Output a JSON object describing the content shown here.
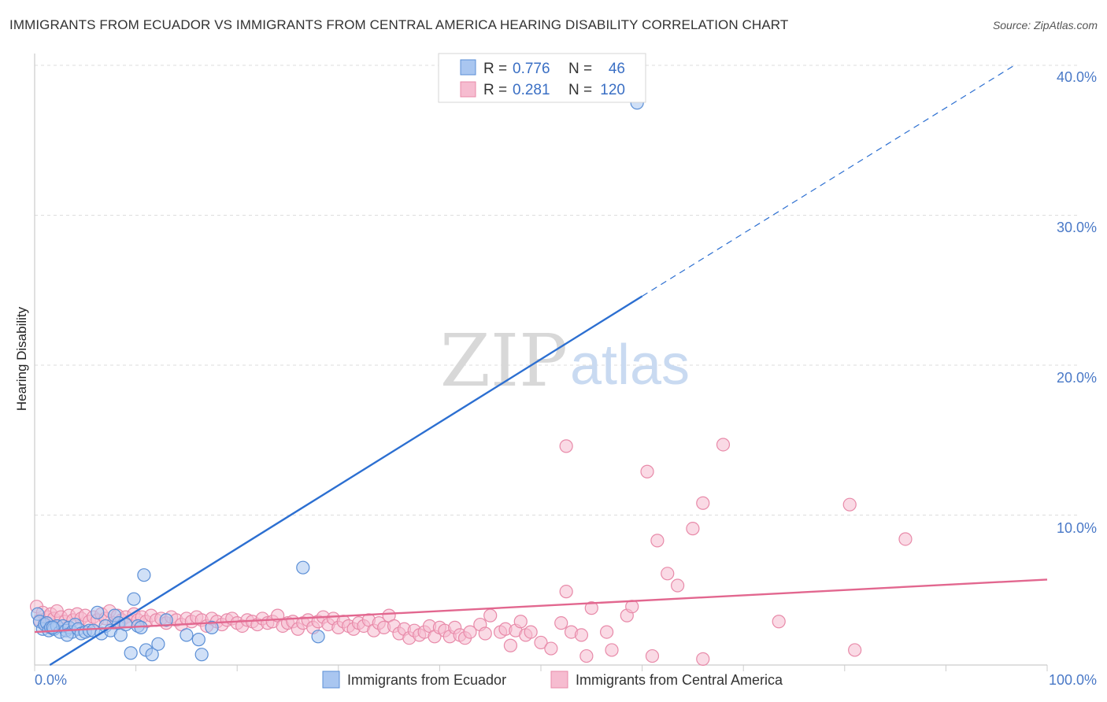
{
  "title": "IMMIGRANTS FROM ECUADOR VS IMMIGRANTS FROM CENTRAL AMERICA HEARING DISABILITY CORRELATION CHART",
  "source": "Source: ZipAtlas.com",
  "watermark": {
    "zip": "ZIP",
    "atlas": "atlas"
  },
  "legend_top": [
    {
      "r_label": "R =",
      "r_value": "0.776",
      "n_label": "N =",
      "n_value": "46"
    },
    {
      "r_label": "R =",
      "r_value": "0.281",
      "n_label": "N =",
      "n_value": "120"
    }
  ],
  "colors": {
    "ecuador_fill": "#a9c6f0",
    "ecuador_stroke": "#5b8fd6",
    "ecuador_line": "#2c6fd1",
    "central_fill": "#f6bcd0",
    "central_stroke": "#e88aa9",
    "central_line": "#e2678f",
    "tick": "#4a79c7",
    "grid": "#dddddd"
  },
  "chart_data": {
    "type": "scatter",
    "title": "IMMIGRANTS FROM ECUADOR VS IMMIGRANTS FROM CENTRAL AMERICA HEARING DISABILITY CORRELATION CHART",
    "xlabel": "",
    "ylabel": "Hearing Disability",
    "xlim": [
      0,
      100
    ],
    "ylim": [
      0,
      42
    ],
    "x_tick_labels": [
      "0.0%",
      "100.0%"
    ],
    "y_ticks": [
      10,
      20,
      30,
      40
    ],
    "y_tick_labels": [
      "10.0%",
      "20.0%",
      "30.0%",
      "40.0%"
    ],
    "series": [
      {
        "name": "Immigrants from Ecuador",
        "R": 0.776,
        "N": 46,
        "trend": {
          "x0": 1.5,
          "y0": 0.0,
          "x1": 60.0,
          "y1": 24.6,
          "dash_to_x": 97.0,
          "dash_to_y": 40.1
        },
        "points": [
          [
            0.3,
            3.4
          ],
          [
            0.5,
            2.9
          ],
          [
            0.8,
            2.4
          ],
          [
            1.0,
            2.7
          ],
          [
            1.2,
            2.8
          ],
          [
            1.4,
            2.3
          ],
          [
            1.6,
            2.5
          ],
          [
            1.9,
            2.4
          ],
          [
            2.2,
            2.6
          ],
          [
            2.5,
            2.2
          ],
          [
            2.8,
            2.6
          ],
          [
            3.1,
            2.3
          ],
          [
            3.4,
            2.5
          ],
          [
            3.7,
            2.2
          ],
          [
            4.0,
            2.7
          ],
          [
            4.3,
            2.4
          ],
          [
            4.6,
            2.1
          ],
          [
            5.0,
            2.2
          ],
          [
            5.4,
            2.3
          ],
          [
            5.8,
            2.3
          ],
          [
            6.2,
            3.5
          ],
          [
            6.6,
            2.1
          ],
          [
            7.0,
            2.6
          ],
          [
            7.5,
            2.3
          ],
          [
            7.9,
            3.3
          ],
          [
            8.3,
            2.8
          ],
          [
            8.5,
            2.0
          ],
          [
            9.0,
            2.7
          ],
          [
            9.5,
            0.8
          ],
          [
            9.8,
            4.4
          ],
          [
            10.2,
            2.6
          ],
          [
            10.5,
            2.5
          ],
          [
            10.8,
            6.0
          ],
          [
            11.0,
            1.0
          ],
          [
            11.6,
            0.7
          ],
          [
            12.2,
            1.4
          ],
          [
            13.0,
            3.0
          ],
          [
            15.0,
            2.0
          ],
          [
            16.2,
            1.7
          ],
          [
            16.5,
            0.7
          ],
          [
            17.5,
            2.5
          ],
          [
            26.5,
            6.5
          ],
          [
            28.0,
            1.9
          ],
          [
            59.5,
            37.5
          ],
          [
            1.8,
            2.5
          ],
          [
            3.2,
            2.0
          ]
        ]
      },
      {
        "name": "Immigrants from Central America",
        "R": 0.281,
        "N": 120,
        "trend": {
          "x0": 0.0,
          "y0": 2.2,
          "x1": 100.0,
          "y1": 5.7
        },
        "points": [
          [
            0.2,
            3.9
          ],
          [
            0.5,
            3.0
          ],
          [
            0.8,
            3.5
          ],
          [
            1.0,
            2.8
          ],
          [
            1.3,
            3.2
          ],
          [
            1.6,
            3.4
          ],
          [
            1.9,
            3.1
          ],
          [
            2.2,
            3.6
          ],
          [
            2.6,
            3.2
          ],
          [
            3.0,
            2.9
          ],
          [
            3.4,
            3.3
          ],
          [
            3.8,
            3.0
          ],
          [
            4.2,
            3.4
          ],
          [
            4.6,
            3.1
          ],
          [
            5.0,
            3.3
          ],
          [
            5.4,
            2.9
          ],
          [
            5.8,
            3.2
          ],
          [
            6.2,
            3.0
          ],
          [
            6.6,
            3.4
          ],
          [
            7.0,
            3.1
          ],
          [
            7.4,
            3.6
          ],
          [
            7.8,
            2.8
          ],
          [
            8.2,
            3.3
          ],
          [
            8.6,
            3.0
          ],
          [
            9.0,
            3.2
          ],
          [
            9.4,
            2.9
          ],
          [
            9.8,
            3.4
          ],
          [
            10.2,
            3.0
          ],
          [
            10.6,
            3.2
          ],
          [
            11.0,
            2.9
          ],
          [
            11.5,
            3.3
          ],
          [
            12.0,
            3.0
          ],
          [
            12.5,
            3.1
          ],
          [
            13.0,
            2.8
          ],
          [
            13.5,
            3.2
          ],
          [
            14.0,
            3.0
          ],
          [
            14.5,
            2.7
          ],
          [
            15.0,
            3.1
          ],
          [
            15.5,
            2.9
          ],
          [
            16.0,
            3.2
          ],
          [
            16.5,
            3.0
          ],
          [
            17.0,
            2.6
          ],
          [
            17.5,
            3.1
          ],
          [
            18.0,
            2.9
          ],
          [
            18.5,
            2.7
          ],
          [
            19.0,
            3.0
          ],
          [
            19.5,
            3.1
          ],
          [
            20.0,
            2.8
          ],
          [
            20.5,
            2.6
          ],
          [
            21.0,
            3.0
          ],
          [
            21.5,
            2.9
          ],
          [
            22.0,
            2.7
          ],
          [
            22.5,
            3.1
          ],
          [
            23.0,
            2.8
          ],
          [
            23.5,
            2.9
          ],
          [
            24.0,
            3.3
          ],
          [
            24.5,
            2.6
          ],
          [
            25.0,
            2.8
          ],
          [
            25.5,
            2.9
          ],
          [
            26.0,
            2.4
          ],
          [
            26.5,
            2.8
          ],
          [
            27.0,
            3.0
          ],
          [
            27.5,
            2.5
          ],
          [
            28.0,
            2.9
          ],
          [
            28.5,
            3.2
          ],
          [
            29.0,
            2.7
          ],
          [
            29.5,
            3.1
          ],
          [
            30.0,
            2.5
          ],
          [
            30.5,
            2.9
          ],
          [
            31.0,
            2.6
          ],
          [
            31.5,
            2.4
          ],
          [
            32.0,
            2.8
          ],
          [
            32.5,
            2.6
          ],
          [
            33.0,
            3.0
          ],
          [
            33.5,
            2.3
          ],
          [
            34.0,
            2.8
          ],
          [
            34.5,
            2.5
          ],
          [
            35.0,
            3.3
          ],
          [
            35.5,
            2.6
          ],
          [
            36.0,
            2.1
          ],
          [
            36.5,
            2.4
          ],
          [
            37.0,
            1.8
          ],
          [
            37.5,
            2.3
          ],
          [
            38.0,
            2.0
          ],
          [
            38.5,
            2.2
          ],
          [
            39.0,
            2.6
          ],
          [
            39.5,
            1.9
          ],
          [
            40.0,
            2.5
          ],
          [
            40.5,
            2.3
          ],
          [
            41.0,
            1.9
          ],
          [
            41.5,
            2.5
          ],
          [
            42.0,
            2.0
          ],
          [
            42.5,
            1.8
          ],
          [
            43.0,
            2.2
          ],
          [
            44.0,
            2.7
          ],
          [
            44.5,
            2.1
          ],
          [
            45.0,
            3.3
          ],
          [
            46.0,
            2.2
          ],
          [
            46.5,
            2.4
          ],
          [
            47.0,
            1.3
          ],
          [
            47.5,
            2.3
          ],
          [
            48.0,
            2.9
          ],
          [
            48.5,
            2.0
          ],
          [
            49.0,
            2.2
          ],
          [
            50.0,
            1.5
          ],
          [
            51.0,
            1.1
          ],
          [
            52.0,
            2.8
          ],
          [
            52.5,
            4.9
          ],
          [
            52.5,
            14.6
          ],
          [
            53.0,
            2.2
          ],
          [
            54.0,
            2.0
          ],
          [
            54.5,
            0.6
          ],
          [
            55.0,
            3.8
          ],
          [
            56.5,
            2.2
          ],
          [
            57.0,
            1.0
          ],
          [
            58.5,
            3.3
          ],
          [
            59.0,
            3.9
          ],
          [
            60.5,
            12.9
          ],
          [
            61.0,
            0.6
          ],
          [
            61.5,
            8.3
          ],
          [
            62.5,
            6.1
          ],
          [
            63.5,
            5.3
          ],
          [
            65.0,
            9.1
          ],
          [
            66.0,
            10.8
          ],
          [
            66.0,
            0.4
          ],
          [
            68.0,
            14.7
          ],
          [
            73.5,
            2.9
          ],
          [
            80.5,
            10.7
          ],
          [
            81.0,
            1.0
          ],
          [
            86.0,
            8.4
          ]
        ]
      }
    ],
    "legend": {
      "placement": "top-center",
      "entries": [
        "Immigrants from Ecuador",
        "Immigrants from Central America"
      ]
    }
  }
}
